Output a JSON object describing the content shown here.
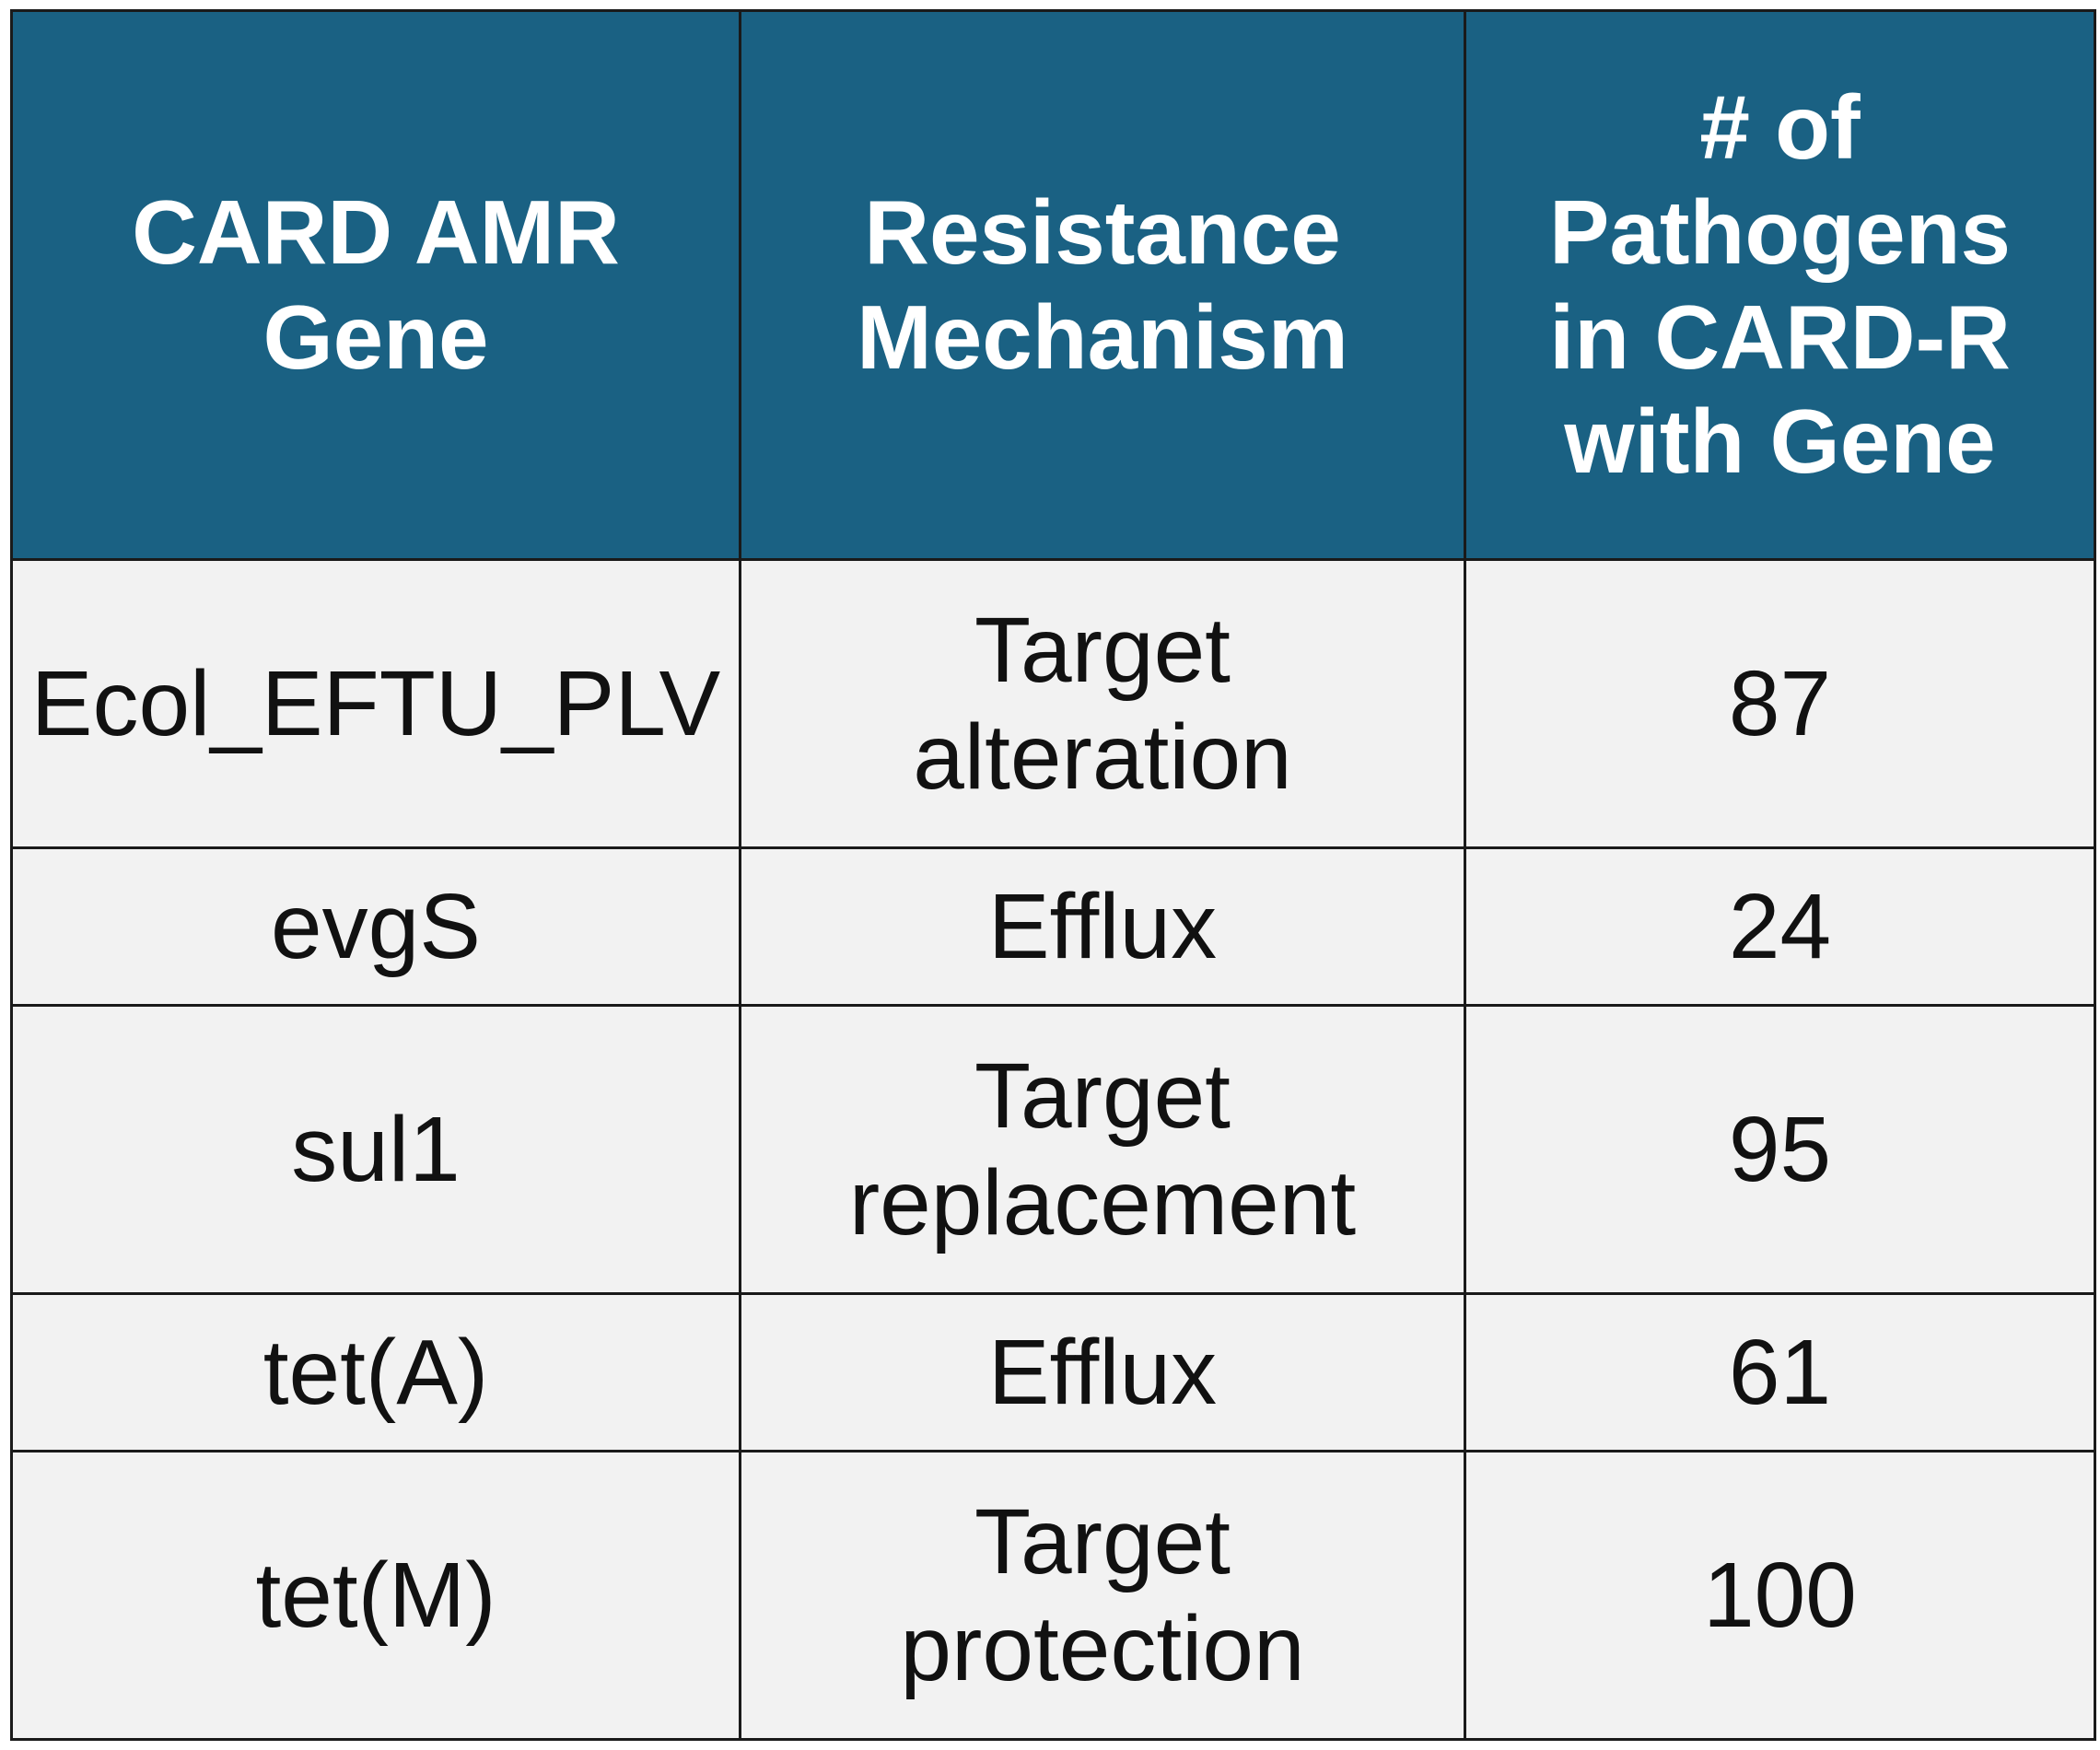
{
  "table": {
    "headers": [
      [
        "CARD AMR",
        "Gene"
      ],
      [
        "Resistance",
        "Mechanism"
      ],
      [
        "# of",
        "Pathogens",
        "in CARD-R",
        "with Gene"
      ]
    ],
    "rows": [
      {
        "gene": "Ecol_EFTU_PLV",
        "mechanism": [
          "Target",
          "alteration"
        ],
        "count": "87"
      },
      {
        "gene": "evgS",
        "mechanism": [
          "Efflux"
        ],
        "count": "24"
      },
      {
        "gene": "sul1",
        "mechanism": [
          "Target",
          "replacement"
        ],
        "count": "95"
      },
      {
        "gene": "tet(A)",
        "mechanism": [
          "Efflux"
        ],
        "count": "61"
      },
      {
        "gene": "tet(M)",
        "mechanism": [
          "Target",
          "protection"
        ],
        "count": "100"
      }
    ]
  },
  "colors": {
    "header_background": "#1a6183",
    "header_text": "#ffffff",
    "cell_background": "#f2f2f2",
    "border": "#1a1a1a"
  }
}
